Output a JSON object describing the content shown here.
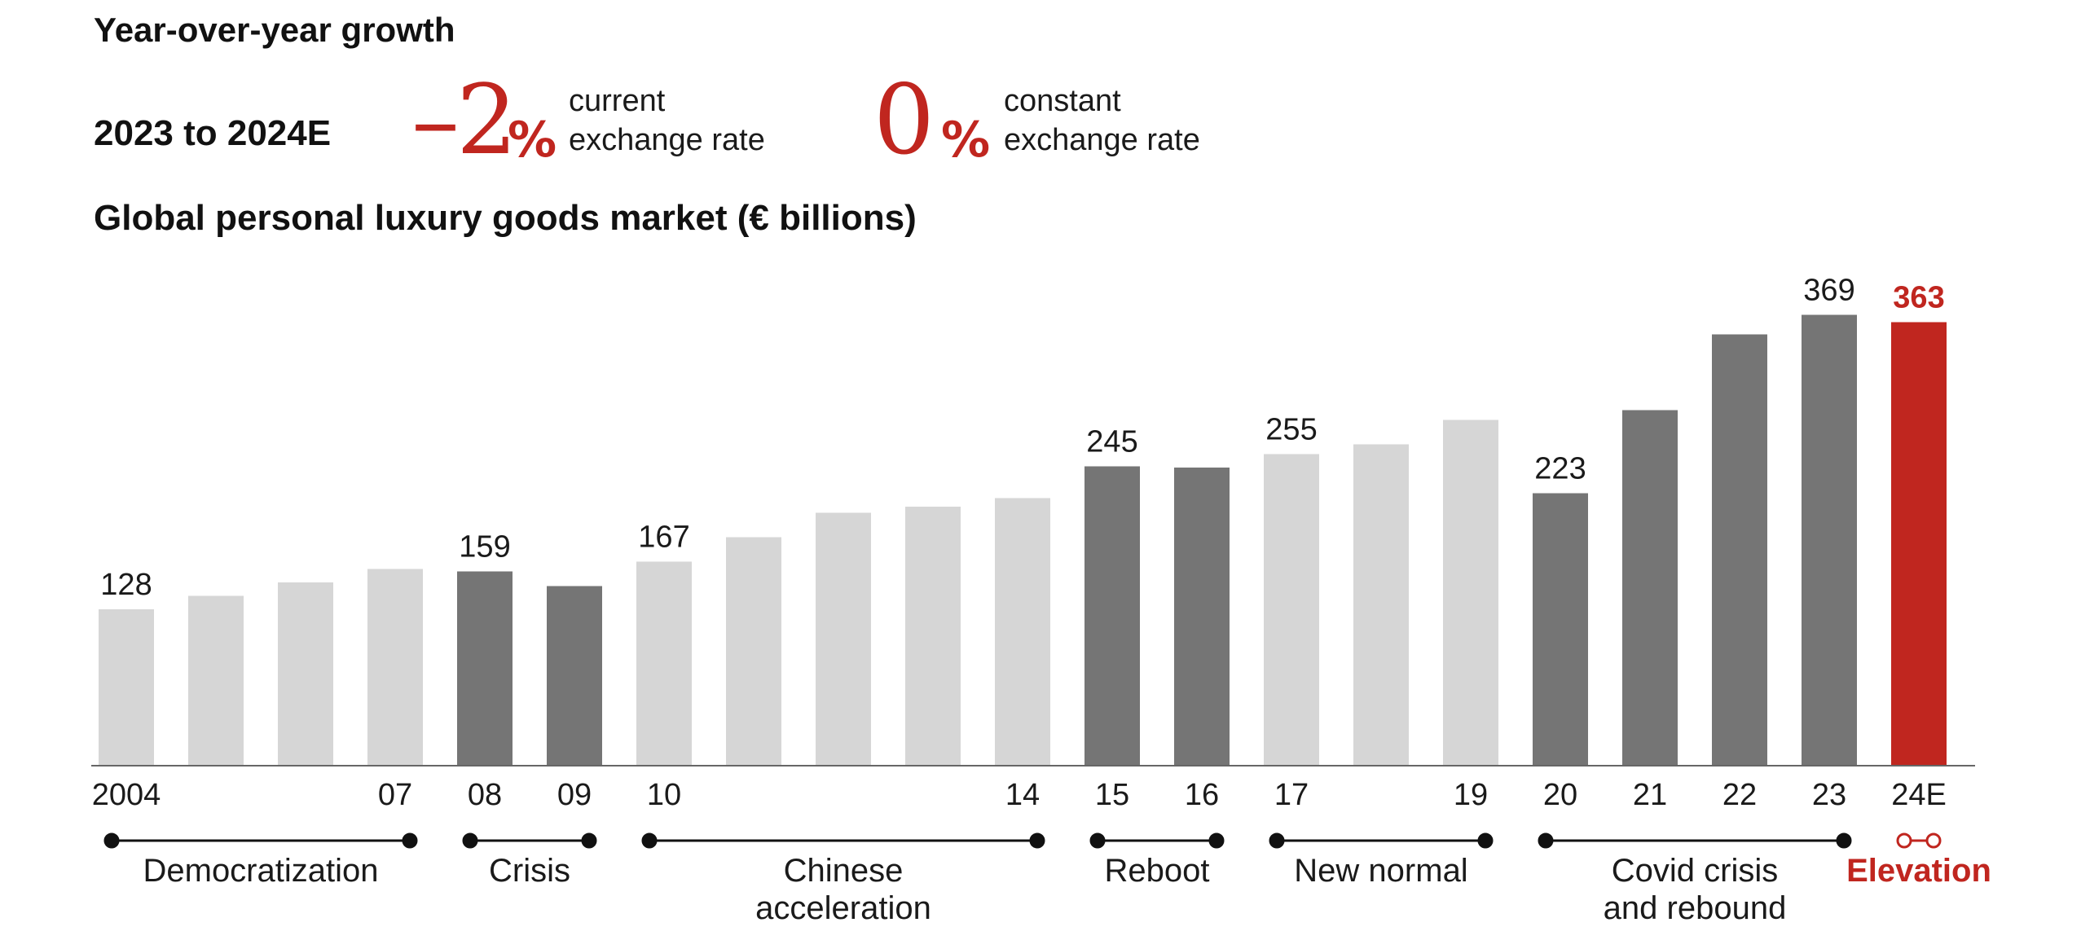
{
  "header": {
    "title": "Year-over-year growth",
    "period": "2023 to 2024E",
    "stats": [
      {
        "value": "–2",
        "unit": "%",
        "line1": "current",
        "line2": "exchange rate"
      },
      {
        "value": "0",
        "unit": "%",
        "line1": "constant",
        "line2": "exchange rate"
      }
    ]
  },
  "colors": {
    "light": "#d6d6d6",
    "dark": "#757575",
    "accent": "#c0261f",
    "text": "#1a1a1a"
  },
  "chart_data": {
    "type": "bar",
    "title": "Global personal luxury goods market (€ billions)",
    "xlabel": "",
    "ylabel": "",
    "ylim": [
      0,
      400
    ],
    "grid": false,
    "legend": "none",
    "categories": [
      "2004",
      "05",
      "06",
      "07",
      "08",
      "09",
      "10",
      "11",
      "12",
      "13",
      "14",
      "15",
      "16",
      "17",
      "18",
      "19",
      "20",
      "21",
      "22",
      "23",
      "24E"
    ],
    "tick_labels": [
      "2004",
      "",
      "",
      "07",
      "08",
      "09",
      "10",
      "",
      "",
      "",
      "14",
      "15",
      "16",
      "17",
      "",
      "19",
      "20",
      "21",
      "22",
      "23",
      "24E"
    ],
    "values": [
      128,
      139,
      150,
      161,
      159,
      147,
      167,
      187,
      207,
      212,
      219,
      245,
      244,
      255,
      263,
      283,
      223,
      291,
      353,
      369,
      363
    ],
    "shades": [
      "light",
      "light",
      "light",
      "light",
      "dark",
      "dark",
      "light",
      "light",
      "light",
      "light",
      "light",
      "dark",
      "dark",
      "light",
      "light",
      "light",
      "dark",
      "dark",
      "dark",
      "dark",
      "accent"
    ],
    "data_labels": [
      {
        "index": 0,
        "text": "128"
      },
      {
        "index": 4,
        "text": "159"
      },
      {
        "index": 6,
        "text": "167"
      },
      {
        "index": 11,
        "text": "245"
      },
      {
        "index": 13,
        "text": "255"
      },
      {
        "index": 16,
        "text": "223"
      },
      {
        "index": 19,
        "text": "369"
      },
      {
        "index": 20,
        "text": "363"
      }
    ],
    "periods": [
      {
        "label": [
          "Democratization"
        ],
        "start": 0,
        "end": 3
      },
      {
        "label": [
          "Crisis"
        ],
        "start": 4,
        "end": 5
      },
      {
        "label": [
          "Chinese",
          "acceleration"
        ],
        "start": 6,
        "end": 10
      },
      {
        "label": [
          "Reboot"
        ],
        "start": 11,
        "end": 12
      },
      {
        "label": [
          "New normal"
        ],
        "start": 13,
        "end": 15
      },
      {
        "label": [
          "Covid crisis",
          "and rebound"
        ],
        "start": 16,
        "end": 19
      },
      {
        "label": [
          "Elevation"
        ],
        "start": 20,
        "end": 20,
        "accent": true
      }
    ]
  }
}
